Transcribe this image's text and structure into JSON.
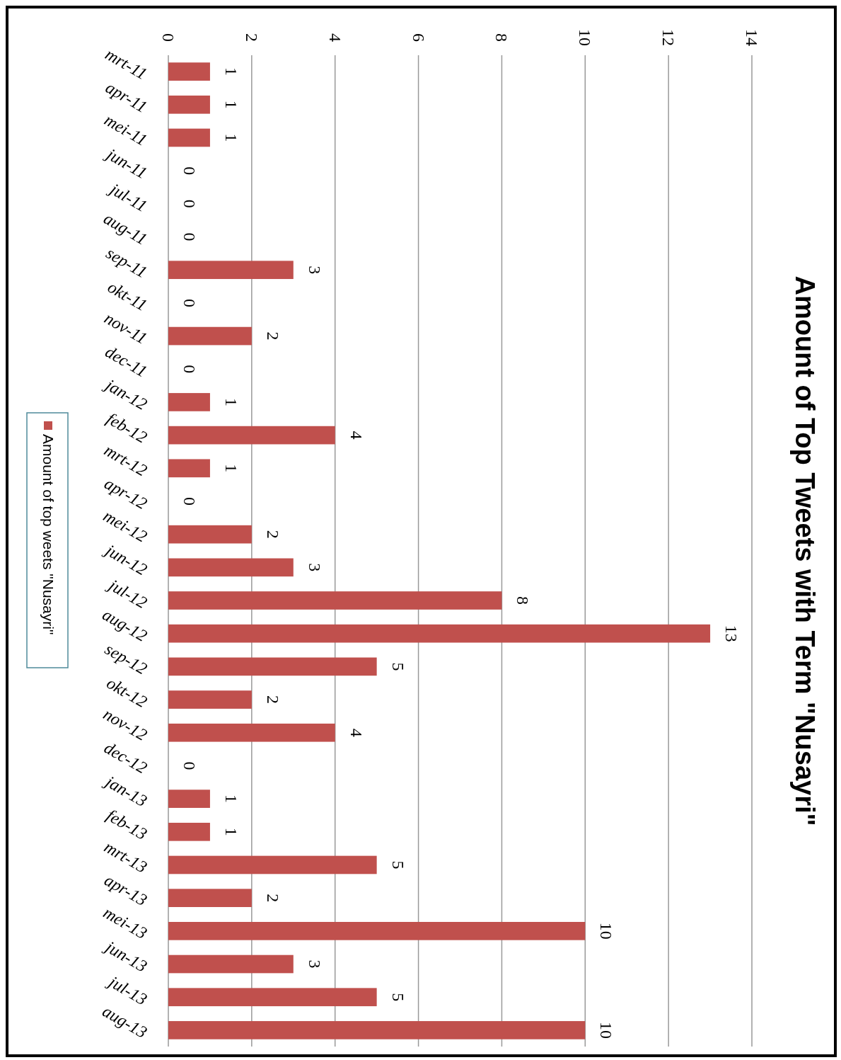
{
  "chart_data": {
    "type": "bar",
    "orientation": "horizontal",
    "title": "Amount of Top Tweets with Term \"Nusayri\"",
    "categories": [
      "mrt-11",
      "apr-11",
      "mei-11",
      "jun-11",
      "jul-11",
      "aug-11",
      "sep-11",
      "okt-11",
      "nov-11",
      "dec-11",
      "jan-12",
      "feb-12",
      "mrt-12",
      "apr-12",
      "mei-12",
      "jun-12",
      "jul-12",
      "aug-12",
      "sep-12",
      "okt-12",
      "nov-12",
      "dec-12",
      "jan-13",
      "feb-13",
      "mrt-13",
      "apr-13",
      "mei-13",
      "jun-13",
      "jul-13",
      "aug-13"
    ],
    "series": [
      {
        "name": "Amount of top weets \"Nusayri\"",
        "color": "#c0504d",
        "values": [
          1,
          1,
          1,
          0,
          0,
          0,
          3,
          0,
          2,
          0,
          1,
          4,
          1,
          0,
          2,
          3,
          8,
          13,
          5,
          2,
          4,
          0,
          1,
          1,
          5,
          2,
          10,
          3,
          5,
          10
        ]
      }
    ],
    "xlim": [
      0,
      14
    ],
    "xticks": [
      0,
      2,
      4,
      6,
      8,
      10,
      12,
      14
    ],
    "grid": "x",
    "legend": "left",
    "data_labels": true
  }
}
